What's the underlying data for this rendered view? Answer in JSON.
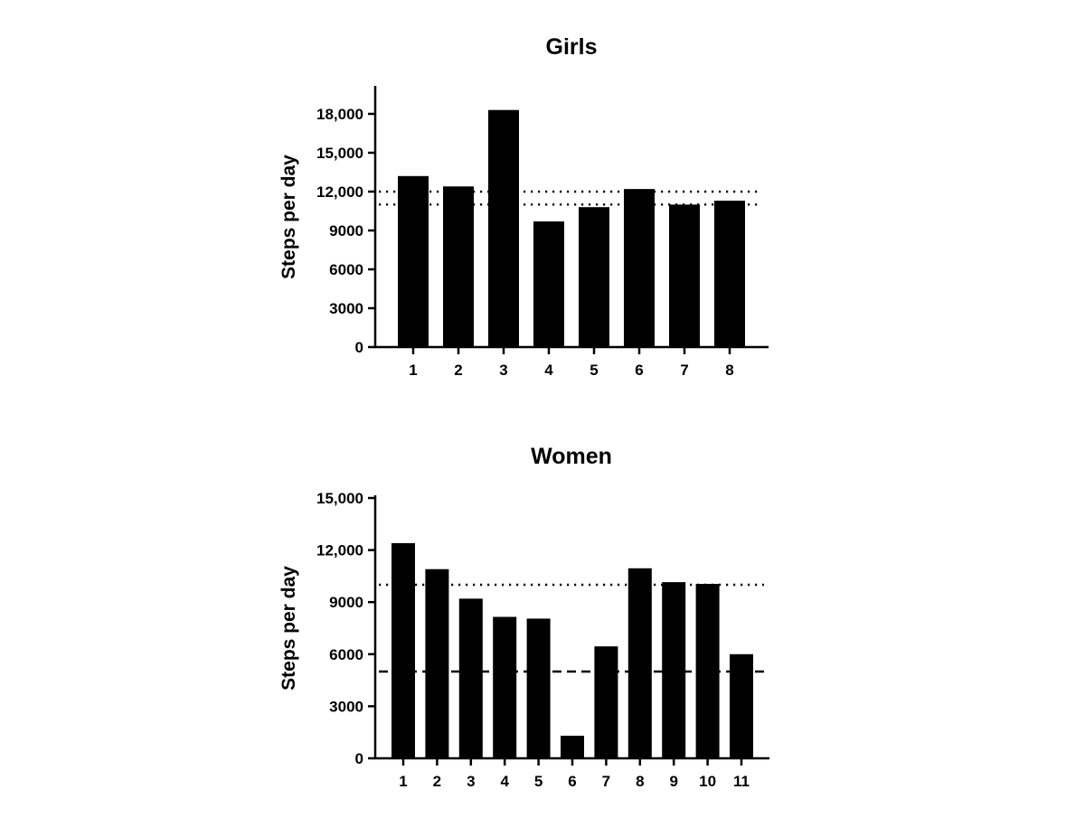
{
  "chart_data": [
    {
      "type": "bar",
      "title": "Girls",
      "xlabel": "",
      "ylabel": "Steps per day",
      "categories": [
        "1",
        "2",
        "3",
        "4",
        "5",
        "6",
        "7",
        "8"
      ],
      "values": [
        13200,
        12400,
        18300,
        9700,
        10800,
        12200,
        11000,
        11300
      ],
      "ylim": [
        0,
        20000
      ],
      "yticks": [
        0,
        3000,
        6000,
        9000,
        12000,
        15000,
        18000
      ],
      "ytick_labels": [
        "0",
        "3000",
        "6000",
        "9000",
        "12,000",
        "15,000",
        "18,000"
      ],
      "reference_lines": [
        {
          "y": 12000,
          "style": "dotted"
        },
        {
          "y": 11000,
          "style": "dotted"
        }
      ],
      "bar_color": "#000000",
      "grid": false
    },
    {
      "type": "bar",
      "title": "Women",
      "xlabel": "",
      "ylabel": "Steps per day",
      "categories": [
        "1",
        "2",
        "3",
        "4",
        "5",
        "6",
        "7",
        "8",
        "9",
        "10",
        "11"
      ],
      "values": [
        12400,
        10900,
        9200,
        8150,
        8050,
        1300,
        6450,
        10950,
        10150,
        10050,
        6000
      ],
      "ylim": [
        0,
        15000
      ],
      "yticks": [
        0,
        3000,
        6000,
        9000,
        12000,
        15000
      ],
      "ytick_labels": [
        "0",
        "3000",
        "6000",
        "9000",
        "12,000",
        "15,000"
      ],
      "reference_lines": [
        {
          "y": 10000,
          "style": "dotted"
        },
        {
          "y": 5000,
          "style": "dashed"
        }
      ],
      "bar_color": "#000000",
      "grid": false
    }
  ]
}
